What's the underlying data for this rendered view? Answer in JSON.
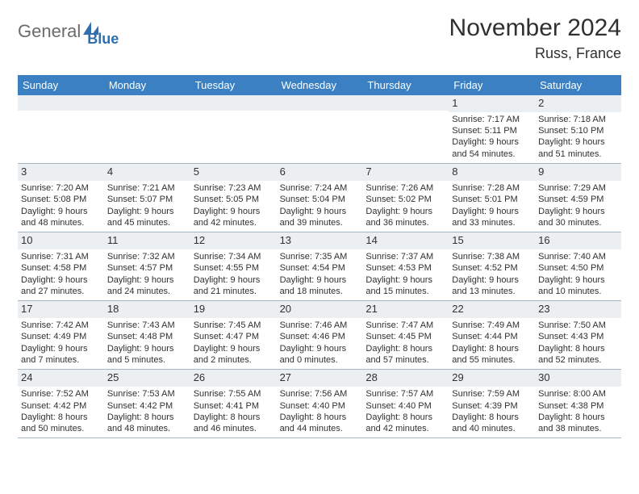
{
  "logo": {
    "text1": "General",
    "text2": "Blue",
    "icon_color": "#2f6fb0",
    "text1_color": "#6b6b6b",
    "text2_color": "#2f6fb0"
  },
  "title": "November 2024",
  "location": "Russ, France",
  "header_bg": "#3a80c3",
  "band_bg": "#eceff2",
  "border_color": "#a7b7c6",
  "weekdays": [
    "Sunday",
    "Monday",
    "Tuesday",
    "Wednesday",
    "Thursday",
    "Friday",
    "Saturday"
  ],
  "weeks": [
    [
      null,
      null,
      null,
      null,
      null,
      {
        "n": "1",
        "sunrise": "7:17 AM",
        "sunset": "5:11 PM",
        "dl": "9 hours and 54 minutes."
      },
      {
        "n": "2",
        "sunrise": "7:18 AM",
        "sunset": "5:10 PM",
        "dl": "9 hours and 51 minutes."
      }
    ],
    [
      {
        "n": "3",
        "sunrise": "7:20 AM",
        "sunset": "5:08 PM",
        "dl": "9 hours and 48 minutes."
      },
      {
        "n": "4",
        "sunrise": "7:21 AM",
        "sunset": "5:07 PM",
        "dl": "9 hours and 45 minutes."
      },
      {
        "n": "5",
        "sunrise": "7:23 AM",
        "sunset": "5:05 PM",
        "dl": "9 hours and 42 minutes."
      },
      {
        "n": "6",
        "sunrise": "7:24 AM",
        "sunset": "5:04 PM",
        "dl": "9 hours and 39 minutes."
      },
      {
        "n": "7",
        "sunrise": "7:26 AM",
        "sunset": "5:02 PM",
        "dl": "9 hours and 36 minutes."
      },
      {
        "n": "8",
        "sunrise": "7:28 AM",
        "sunset": "5:01 PM",
        "dl": "9 hours and 33 minutes."
      },
      {
        "n": "9",
        "sunrise": "7:29 AM",
        "sunset": "4:59 PM",
        "dl": "9 hours and 30 minutes."
      }
    ],
    [
      {
        "n": "10",
        "sunrise": "7:31 AM",
        "sunset": "4:58 PM",
        "dl": "9 hours and 27 minutes."
      },
      {
        "n": "11",
        "sunrise": "7:32 AM",
        "sunset": "4:57 PM",
        "dl": "9 hours and 24 minutes."
      },
      {
        "n": "12",
        "sunrise": "7:34 AM",
        "sunset": "4:55 PM",
        "dl": "9 hours and 21 minutes."
      },
      {
        "n": "13",
        "sunrise": "7:35 AM",
        "sunset": "4:54 PM",
        "dl": "9 hours and 18 minutes."
      },
      {
        "n": "14",
        "sunrise": "7:37 AM",
        "sunset": "4:53 PM",
        "dl": "9 hours and 15 minutes."
      },
      {
        "n": "15",
        "sunrise": "7:38 AM",
        "sunset": "4:52 PM",
        "dl": "9 hours and 13 minutes."
      },
      {
        "n": "16",
        "sunrise": "7:40 AM",
        "sunset": "4:50 PM",
        "dl": "9 hours and 10 minutes."
      }
    ],
    [
      {
        "n": "17",
        "sunrise": "7:42 AM",
        "sunset": "4:49 PM",
        "dl": "9 hours and 7 minutes."
      },
      {
        "n": "18",
        "sunrise": "7:43 AM",
        "sunset": "4:48 PM",
        "dl": "9 hours and 5 minutes."
      },
      {
        "n": "19",
        "sunrise": "7:45 AM",
        "sunset": "4:47 PM",
        "dl": "9 hours and 2 minutes."
      },
      {
        "n": "20",
        "sunrise": "7:46 AM",
        "sunset": "4:46 PM",
        "dl": "9 hours and 0 minutes."
      },
      {
        "n": "21",
        "sunrise": "7:47 AM",
        "sunset": "4:45 PM",
        "dl": "8 hours and 57 minutes."
      },
      {
        "n": "22",
        "sunrise": "7:49 AM",
        "sunset": "4:44 PM",
        "dl": "8 hours and 55 minutes."
      },
      {
        "n": "23",
        "sunrise": "7:50 AM",
        "sunset": "4:43 PM",
        "dl": "8 hours and 52 minutes."
      }
    ],
    [
      {
        "n": "24",
        "sunrise": "7:52 AM",
        "sunset": "4:42 PM",
        "dl": "8 hours and 50 minutes."
      },
      {
        "n": "25",
        "sunrise": "7:53 AM",
        "sunset": "4:42 PM",
        "dl": "8 hours and 48 minutes."
      },
      {
        "n": "26",
        "sunrise": "7:55 AM",
        "sunset": "4:41 PM",
        "dl": "8 hours and 46 minutes."
      },
      {
        "n": "27",
        "sunrise": "7:56 AM",
        "sunset": "4:40 PM",
        "dl": "8 hours and 44 minutes."
      },
      {
        "n": "28",
        "sunrise": "7:57 AM",
        "sunset": "4:40 PM",
        "dl": "8 hours and 42 minutes."
      },
      {
        "n": "29",
        "sunrise": "7:59 AM",
        "sunset": "4:39 PM",
        "dl": "8 hours and 40 minutes."
      },
      {
        "n": "30",
        "sunrise": "8:00 AM",
        "sunset": "4:38 PM",
        "dl": "8 hours and 38 minutes."
      }
    ]
  ],
  "labels": {
    "sunrise": "Sunrise:",
    "sunset": "Sunset:",
    "daylight": "Daylight:"
  }
}
